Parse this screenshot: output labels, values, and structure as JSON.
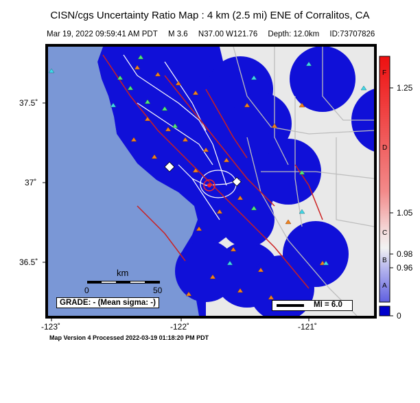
{
  "header": {
    "title": "CISN/cgs Uncertainty Ratio Map : 4 km (2.5 mi) ENE of Corralitos, CA",
    "date": "Mar 19, 2022 09:59:41 AM PDT",
    "magnitude": "M 3.6",
    "location": "N37.00 W121.76",
    "depth": "Depth: 12.0km",
    "event_id": "ID:73707826"
  },
  "axes": {
    "lat_labels": [
      "37.5˚",
      "37˚",
      "36.5˚"
    ],
    "lon_labels": [
      "-123˚",
      "-122˚",
      "-121˚"
    ]
  },
  "scale_bar": {
    "unit": "km",
    "start": "0",
    "end": "50"
  },
  "grade_box": "GRADE: - (Mean sigma: -)",
  "mi_box": "MI = 6.0",
  "colorbar": {
    "values": [
      "1.25",
      "1.05",
      "0.98",
      "0.96",
      "0"
    ],
    "grades": [
      "F",
      "D",
      "C",
      "B",
      "A"
    ]
  },
  "footer": "Map Version 4 Processed 2022-03-19 01:18:20 PM PDT",
  "colors": {
    "ocean": "#7a97d6",
    "land": "#e9e9e9",
    "coverage": "#1010d8",
    "faults": "#cc2020",
    "roads": "#cccccc"
  }
}
